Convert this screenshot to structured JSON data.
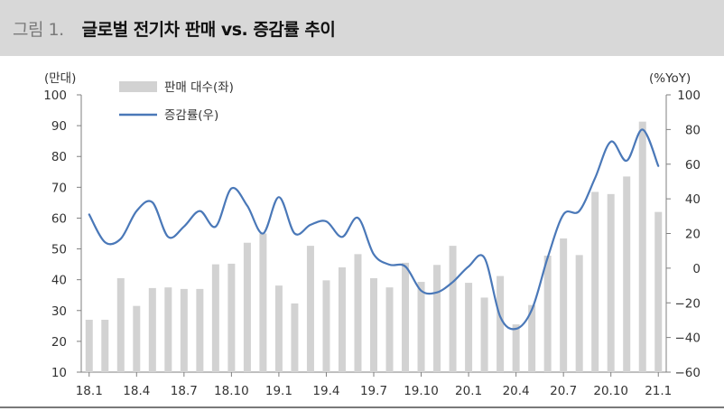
{
  "header": {
    "figure_label": "그림 1.",
    "title": "글로벌 전기차 판매 vs. 증감률 추이"
  },
  "chart_data": {
    "type": "bar+line",
    "left_axis_unit": "(만대)",
    "right_axis_unit": "(%YoY)",
    "ylim_left": [
      10,
      100
    ],
    "ylim_right": [
      -60,
      100
    ],
    "left_ticks": [
      10,
      20,
      30,
      40,
      50,
      60,
      70,
      80,
      90,
      100
    ],
    "right_ticks": [
      -60,
      -40,
      -20,
      0,
      20,
      40,
      60,
      80,
      100
    ],
    "right_tick_labels": [
      "−60",
      "−40",
      "−20",
      "0",
      "20",
      "40",
      "60",
      "80",
      "100"
    ],
    "x_tick_labels": [
      "18.1",
      "18.4",
      "18.7",
      "18.10",
      "19.1",
      "19.4",
      "19.7",
      "19.10",
      "20.1",
      "20.4",
      "20.7",
      "20.10",
      "21.1"
    ],
    "legend_position": "top-left",
    "series": [
      {
        "name": "판매 대수(좌)",
        "type": "bar",
        "axis": "left",
        "color": "#d2d2d2",
        "values": [
          27,
          27,
          40.5,
          31.5,
          37.3,
          37.5,
          37,
          37,
          45,
          45.2,
          52,
          55,
          38.1,
          32.3,
          51,
          39.8,
          44,
          48.3,
          40.5,
          37.5,
          45.5,
          39.3,
          44.8,
          51,
          39,
          34.2,
          41.2,
          25.5,
          31.8,
          47.8,
          53.4,
          48,
          68.5,
          67.8,
          73.5,
          91.3,
          62
        ]
      },
      {
        "name": "증감률(우)",
        "type": "line",
        "axis": "right",
        "color": "#4a78b8",
        "values": [
          31,
          15,
          17,
          33,
          38,
          18,
          24,
          33,
          24,
          46,
          36,
          20,
          41,
          20,
          25,
          27,
          18,
          29,
          8,
          2,
          1,
          -13,
          -14,
          -8,
          1,
          6,
          -28,
          -35,
          -24,
          6,
          31,
          33,
          52,
          73,
          62,
          80,
          59
        ]
      }
    ]
  }
}
